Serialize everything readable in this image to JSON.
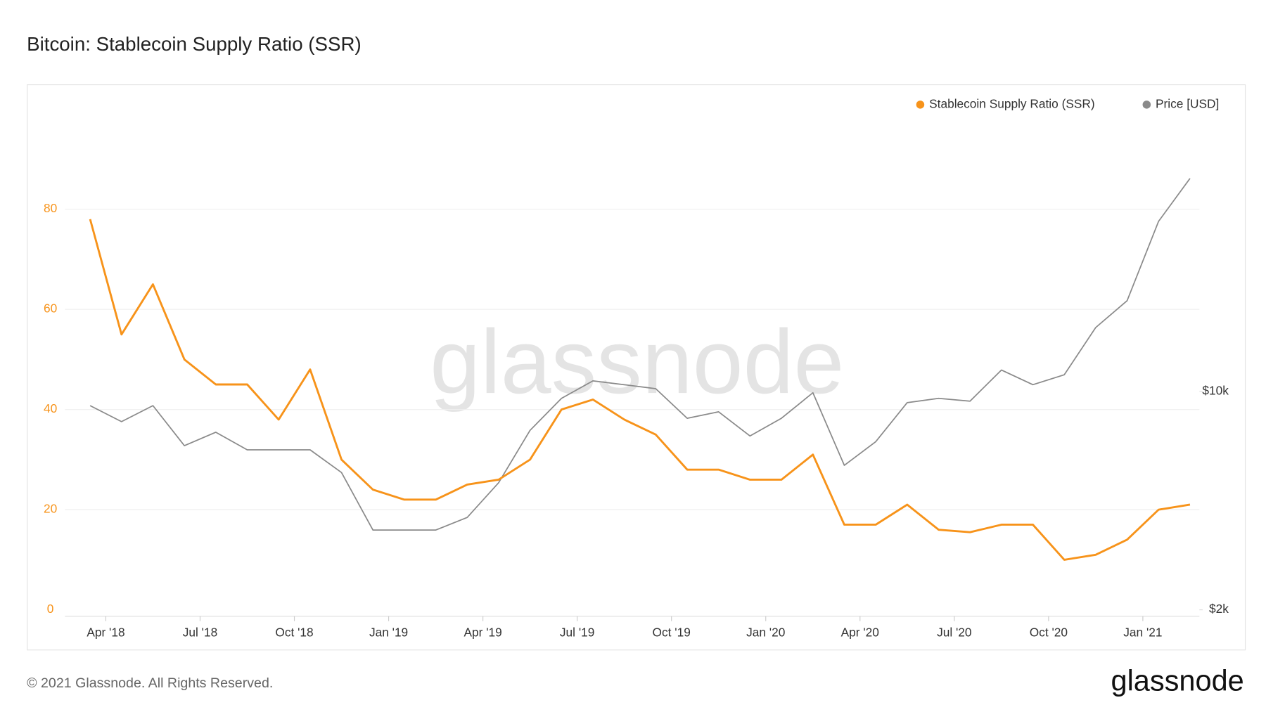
{
  "chart_data": {
    "type": "line",
    "title": "Bitcoin: Stablecoin Supply Ratio (SSR)",
    "watermark": "glassnode",
    "x": [
      "2018-03",
      "2018-04",
      "2018-05",
      "2018-06",
      "2018-07",
      "2018-08",
      "2018-09",
      "2018-10",
      "2018-11",
      "2018-12",
      "2019-01",
      "2019-02",
      "2019-03",
      "2019-04",
      "2019-05",
      "2019-06",
      "2019-07",
      "2019-08",
      "2019-09",
      "2019-10",
      "2019-11",
      "2019-12",
      "2020-01",
      "2020-02",
      "2020-03",
      "2020-04",
      "2020-05",
      "2020-06",
      "2020-07",
      "2020-08",
      "2020-09",
      "2020-10",
      "2020-11",
      "2020-12",
      "2021-01",
      "2021-02"
    ],
    "series": [
      {
        "name": "Stablecoin Supply Ratio (SSR)",
        "color": "#f7931a",
        "values": [
          78,
          55,
          65,
          50,
          45,
          45,
          38,
          48,
          30,
          24,
          22,
          22,
          25,
          26,
          30,
          40,
          42,
          38,
          35,
          28,
          28,
          26,
          26,
          31,
          17,
          17,
          21,
          16,
          15.5,
          17,
          17,
          10,
          11,
          14,
          20,
          21
        ]
      },
      {
        "name": "Price [USD]",
        "color": "#8a8a8a",
        "axis": "y2",
        "values": [
          9000,
          8000,
          9000,
          6700,
          7400,
          6500,
          6500,
          6500,
          5500,
          3600,
          3600,
          3600,
          3950,
          5100,
          7500,
          9500,
          10800,
          10500,
          10200,
          8200,
          8600,
          7200,
          8200,
          9900,
          5800,
          6900,
          9200,
          9500,
          9300,
          11700,
          10500,
          11300,
          16000,
          19500,
          35000,
          48000
        ]
      }
    ],
    "xticks": [
      {
        "value": "2018-04",
        "label": "Apr '18"
      },
      {
        "value": "2018-07",
        "label": "Jul '18"
      },
      {
        "value": "2018-10",
        "label": "Oct '18"
      },
      {
        "value": "2019-01",
        "label": "Jan '19"
      },
      {
        "value": "2019-04",
        "label": "Apr '19"
      },
      {
        "value": "2019-07",
        "label": "Jul '19"
      },
      {
        "value": "2019-10",
        "label": "Oct '19"
      },
      {
        "value": "2020-01",
        "label": "Jan '20"
      },
      {
        "value": "2020-04",
        "label": "Apr '20"
      },
      {
        "value": "2020-07",
        "label": "Jul '20"
      },
      {
        "value": "2020-10",
        "label": "Oct '20"
      },
      {
        "value": "2021-01",
        "label": "Jan '21"
      }
    ],
    "ylim": [
      0,
      100
    ],
    "yticks": [
      0,
      20,
      40,
      60,
      80
    ],
    "y2lim": [
      2000,
      80000
    ],
    "y2scale": "log",
    "y2ticks": [
      {
        "value": 2000,
        "label": "$2k"
      },
      {
        "value": 10000,
        "label": "$10k"
      }
    ],
    "grid": true,
    "legend": "top-right"
  },
  "footer": {
    "copyright": "© 2021 Glassnode. All Rights Reserved.",
    "logo": "glassnode"
  }
}
